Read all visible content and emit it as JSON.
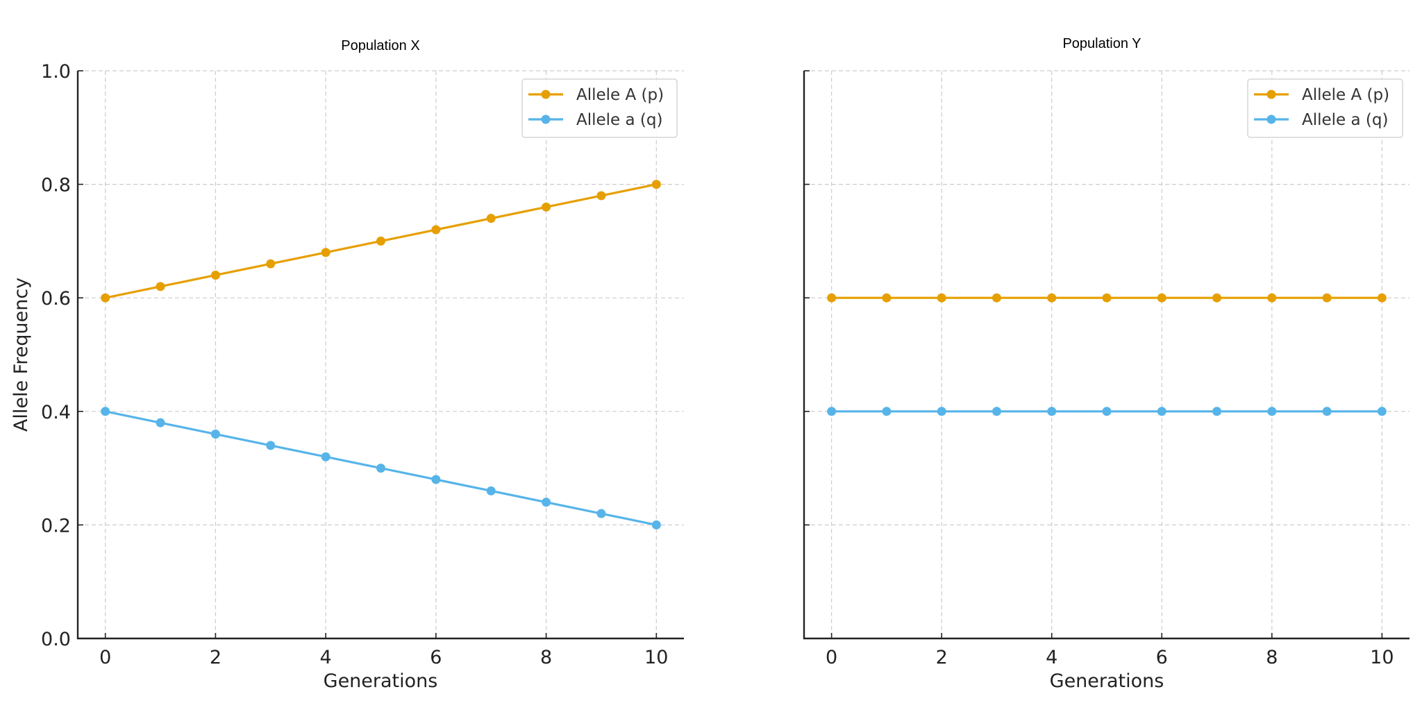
{
  "chart_data": [
    {
      "type": "line",
      "title": "Population X",
      "xlabel": "Generations",
      "ylabel": "Allele Frequency",
      "xlim": [
        -0.5,
        10.5
      ],
      "ylim": [
        0.0,
        1.0
      ],
      "xticks": [
        0,
        2,
        4,
        6,
        8,
        10
      ],
      "xtick_labels": [
        "0",
        "2",
        "4",
        "6",
        "8",
        "10"
      ],
      "yticks": [
        0.0,
        0.2,
        0.4,
        0.6,
        0.8,
        1.0
      ],
      "ytick_labels": [
        "0.0",
        "0.2",
        "0.4",
        "0.6",
        "0.8",
        "1.0"
      ],
      "show_yticklabels": true,
      "grid": true,
      "legend_position": "top-right",
      "x": [
        0,
        1,
        2,
        3,
        4,
        5,
        6,
        7,
        8,
        9,
        10
      ],
      "series": [
        {
          "name": "Allele A (p)",
          "color": "#E69F00",
          "marker": "circle",
          "values": [
            0.6,
            0.62,
            0.64,
            0.66,
            0.68,
            0.7,
            0.72,
            0.74,
            0.76,
            0.78,
            0.8
          ]
        },
        {
          "name": "Allele a (q)",
          "color": "#56B4E9",
          "marker": "circle",
          "values": [
            0.4,
            0.38,
            0.36,
            0.34,
            0.32,
            0.3,
            0.28,
            0.26,
            0.24,
            0.22,
            0.2
          ]
        }
      ]
    },
    {
      "type": "line",
      "title": "Population Y",
      "xlabel": "Generations",
      "ylabel": "",
      "xlim": [
        -0.5,
        10.5
      ],
      "ylim": [
        0.0,
        1.0
      ],
      "xticks": [
        0,
        2,
        4,
        6,
        8,
        10
      ],
      "xtick_labels": [
        "0",
        "2",
        "4",
        "6",
        "8",
        "10"
      ],
      "yticks": [
        0.0,
        0.2,
        0.4,
        0.6,
        0.8,
        1.0
      ],
      "ytick_labels": [],
      "show_yticklabels": false,
      "grid": true,
      "legend_position": "top-right",
      "x": [
        0,
        1,
        2,
        3,
        4,
        5,
        6,
        7,
        8,
        9,
        10
      ],
      "series": [
        {
          "name": "Allele A (p)",
          "color": "#E69F00",
          "marker": "circle",
          "values": [
            0.6,
            0.6,
            0.6,
            0.6,
            0.6,
            0.6,
            0.6,
            0.6,
            0.6,
            0.6,
            0.6
          ]
        },
        {
          "name": "Allele a (q)",
          "color": "#56B4E9",
          "marker": "circle",
          "values": [
            0.4,
            0.4,
            0.4,
            0.4,
            0.4,
            0.4,
            0.4,
            0.4,
            0.4,
            0.4,
            0.4
          ]
        }
      ]
    }
  ]
}
